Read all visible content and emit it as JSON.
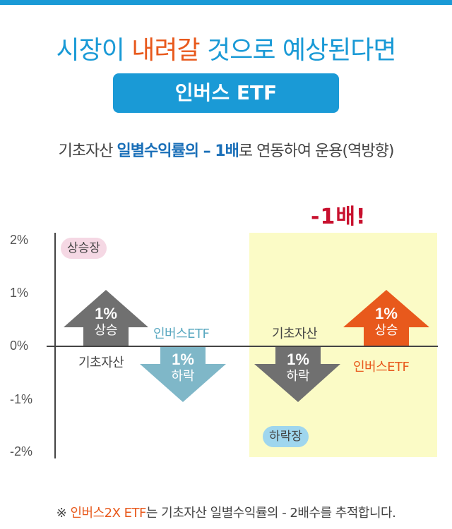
{
  "title": {
    "part1": "시장이 ",
    "accent": "내려갈",
    "part2": " 것으로 예상된다면"
  },
  "badge": "인버스 ETF",
  "subtitle": {
    "part1": "기초자산 ",
    "highlight1": "일별수익률의 – 1배",
    "part2": "로 연동하여 운용(역방향)"
  },
  "multiplier_label": "-1배!",
  "axis": {
    "ticks": [
      "2%",
      "1%",
      "0%",
      "-1%",
      "-2%"
    ]
  },
  "zones": {
    "bull": "상승장",
    "bear": "하락장"
  },
  "bull_market": {
    "underlying": {
      "pct": "1%",
      "dir": "상승",
      "label": "기초자산"
    },
    "inverse": {
      "pct": "1%",
      "dir": "하락",
      "label": "인버스ETF"
    }
  },
  "bear_market": {
    "underlying": {
      "pct": "1%",
      "dir": "하락",
      "label": "기초자산"
    },
    "inverse": {
      "pct": "1%",
      "dir": "상승",
      "label": "인버스ETF"
    }
  },
  "colors": {
    "blue": "#1a9ad6",
    "orange": "#e8591c",
    "gray_arrow": "#707070",
    "teal_arrow": "#7fb7c8",
    "bear_bg": "#fbfbc6"
  },
  "note": {
    "prefix": "※ ",
    "highlight": "인버스2X ETF",
    "suffix": "는 기초자산 일별수익률의 - 2배수를 추적합니다."
  }
}
